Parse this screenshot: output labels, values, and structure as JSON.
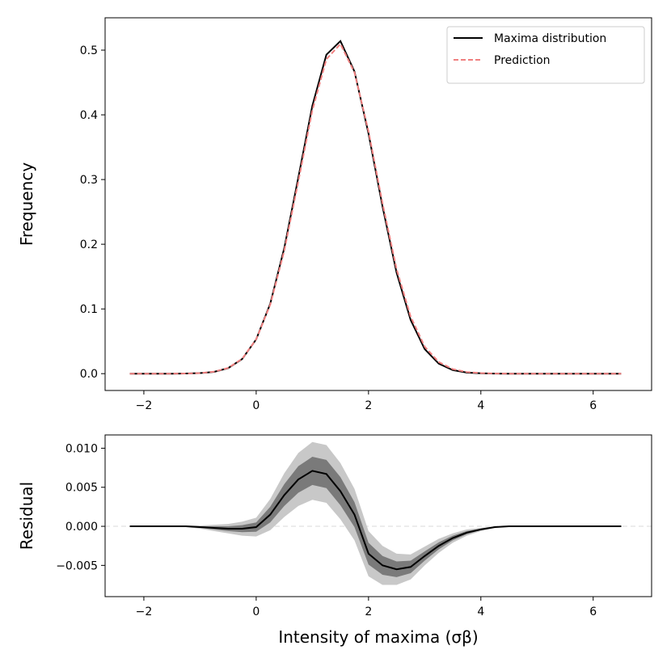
{
  "chart_data": [
    {
      "type": "line",
      "ylabel": "Frequency",
      "x": [
        -2.25,
        -2,
        -1.75,
        -1.5,
        -1.25,
        -1,
        -0.75,
        -0.5,
        -0.25,
        0,
        0.25,
        0.5,
        0.75,
        1,
        1.25,
        1.5,
        1.75,
        2,
        2.25,
        2.5,
        2.75,
        3,
        3.25,
        3.5,
        3.75,
        4,
        4.25,
        4.5,
        4.75,
        5,
        5.25,
        5.5,
        5.75,
        6,
        6.25,
        6.5
      ],
      "series": [
        {
          "name": "Maxima distribution",
          "color": "#000000",
          "dashed": false,
          "values": [
            0,
            0,
            0,
            0,
            0.0002,
            0.0008,
            0.0028,
            0.0085,
            0.0226,
            0.053,
            0.108,
            0.194,
            0.303,
            0.414,
            0.493,
            0.514,
            0.467,
            0.371,
            0.258,
            0.156,
            0.083,
            0.038,
            0.0155,
            0.0055,
            0.0017,
            0.0005,
            0.0001,
            0,
            0,
            0,
            0,
            0,
            0,
            0,
            0,
            0
          ]
        },
        {
          "name": "Prediction",
          "color": "#f08080",
          "dashed": true,
          "values": [
            0,
            0,
            0,
            0,
            0.0002,
            0.0009,
            0.003,
            0.0088,
            0.0229,
            0.0531,
            0.1065,
            0.19,
            0.297,
            0.407,
            0.486,
            0.5095,
            0.4655,
            0.3745,
            0.263,
            0.1615,
            0.0882,
            0.0418,
            0.018,
            0.007,
            0.0025,
            0.0009,
            0.0002,
            0,
            0,
            0,
            0,
            0,
            0,
            0,
            0,
            0
          ]
        }
      ],
      "xlim": [
        -2.69,
        7.04
      ],
      "xticks": [
        {
          "value": -2,
          "label": "−2"
        },
        0,
        2,
        4,
        6
      ],
      "ylim": [
        -0.026,
        0.55
      ],
      "yticks": [
        {
          "value": 0,
          "label": "0.0"
        },
        0.1,
        0.2,
        0.3,
        0.4,
        0.5
      ],
      "legend": "upper right"
    },
    {
      "type": "line",
      "ylabel": "Residual",
      "xlabel": "Intensity of maxima (σβ)",
      "x": [
        -2.25,
        -2,
        -1.75,
        -1.5,
        -1.25,
        -1,
        -0.75,
        -0.5,
        -0.25,
        0,
        0.25,
        0.5,
        0.75,
        1,
        1.25,
        1.5,
        1.75,
        2,
        2.25,
        2.5,
        2.75,
        3,
        3.25,
        3.5,
        3.75,
        4,
        4.25,
        4.5,
        4.75,
        5,
        5.25,
        5.5,
        5.75,
        6,
        6.25,
        6.5
      ],
      "series": [
        {
          "color": "#000000",
          "band_inner_color": "#7a7a7a",
          "band_outer_color": "#c8c8c8",
          "values": [
            0,
            0,
            0,
            0,
            0,
            -0.0001,
            -0.0002,
            -0.0003,
            -0.0003,
            -0.0001,
            0.0015,
            0.004,
            0.006,
            0.0071,
            0.0067,
            0.0045,
            0.0015,
            -0.0035,
            -0.005,
            -0.0055,
            -0.0052,
            -0.0038,
            -0.0025,
            -0.0015,
            -0.0008,
            -0.0004,
            -0.0001,
            0,
            0,
            0,
            0,
            0,
            0,
            0,
            0,
            0
          ],
          "band_outer": [
            0,
            0,
            0,
            0.0001,
            0.0001,
            0.0002,
            0.0004,
            0.0006,
            0.0009,
            0.0012,
            0.002,
            0.0028,
            0.0034,
            0.0037,
            0.0037,
            0.0036,
            0.0033,
            0.0029,
            0.0025,
            0.002,
            0.0016,
            0.0012,
            0.0009,
            0.0006,
            0.0004,
            0.0002,
            0.0001,
            0,
            0,
            0,
            0,
            0,
            0,
            0,
            0,
            0
          ],
          "band_inner": [
            0,
            0,
            0,
            5e-05,
            5e-05,
            0.0001,
            0.0002,
            0.0003,
            0.00045,
            0.0006,
            0.001,
            0.0014,
            0.0017,
            0.0018,
            0.0018,
            0.0018,
            0.0016,
            0.0014,
            0.0012,
            0.001,
            0.0008,
            0.0006,
            0.00045,
            0.0003,
            0.0002,
            0.0001,
            5e-05,
            0,
            0,
            0,
            0,
            0,
            0,
            0,
            0,
            0
          ]
        }
      ],
      "xlim": [
        -2.69,
        7.04
      ],
      "xticks": [
        {
          "value": -2,
          "label": "−2"
        },
        0,
        2,
        4,
        6
      ],
      "ylim": [
        -0.009,
        0.0117
      ],
      "yticks": [
        {
          "value": -0.005,
          "label": "−0.005"
        },
        {
          "value": 0,
          "label": "0.000"
        },
        {
          "value": 0.005,
          "label": "0.005"
        },
        {
          "value": 0.01,
          "label": "0.010"
        }
      ],
      "zero_line": true
    }
  ]
}
